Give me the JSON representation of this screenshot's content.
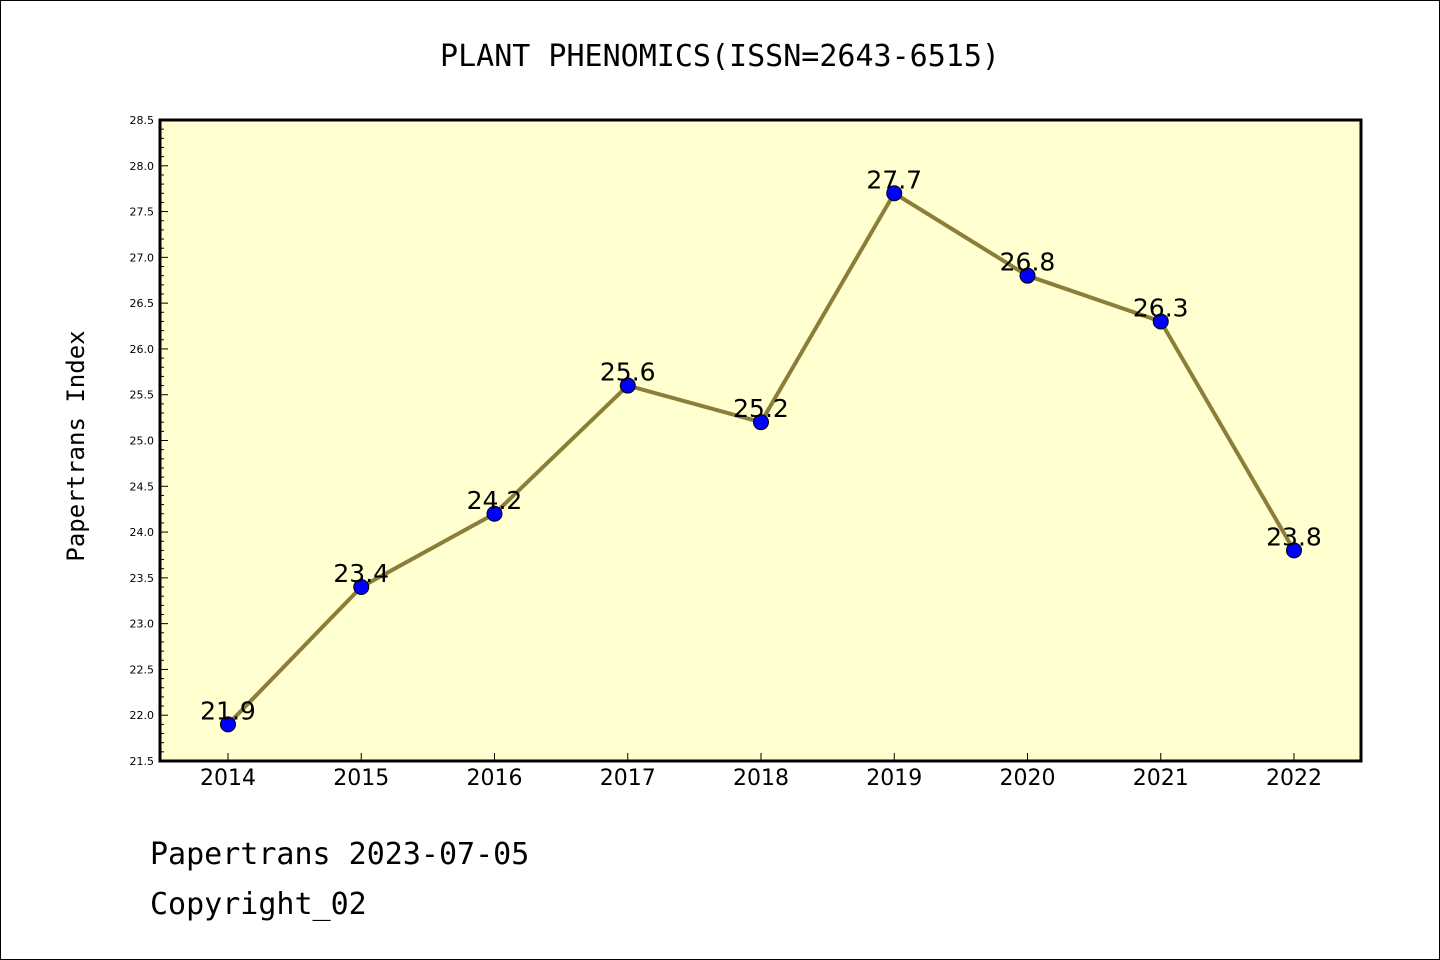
{
  "chart_data": {
    "type": "line",
    "title": "PLANT PHENOMICS(ISSN=2643-6515)",
    "xlabel": "",
    "ylabel": "Papertrans Index",
    "categories": [
      "2014",
      "2015",
      "2016",
      "2017",
      "2018",
      "2019",
      "2020",
      "2021",
      "2022"
    ],
    "series": [
      {
        "values": [
          21.9,
          23.4,
          24.2,
          25.6,
          25.2,
          27.7,
          26.8,
          26.3,
          23.8
        ]
      }
    ],
    "data_labels": [
      "21.9",
      "23.4",
      "24.2",
      "25.6",
      "25.2",
      "27.7",
      "26.8",
      "26.3",
      "23.8"
    ],
    "ylim": [
      21.5,
      28.5
    ],
    "yticks": [
      "21.5",
      "22.0",
      "22.5",
      "23.0",
      "23.5",
      "24.0",
      "24.5",
      "25.0",
      "25.5",
      "26.0",
      "26.5",
      "27.0",
      "27.5",
      "28.0",
      "28.5"
    ],
    "grid": false,
    "legend": "none",
    "colors": {
      "plot_background": "#ffffd0",
      "line": "#8b7d3a",
      "marker": "#0000ff"
    }
  },
  "footer": {
    "line1": "Papertrans 2023-07-05",
    "line2": "Copyright_02"
  }
}
